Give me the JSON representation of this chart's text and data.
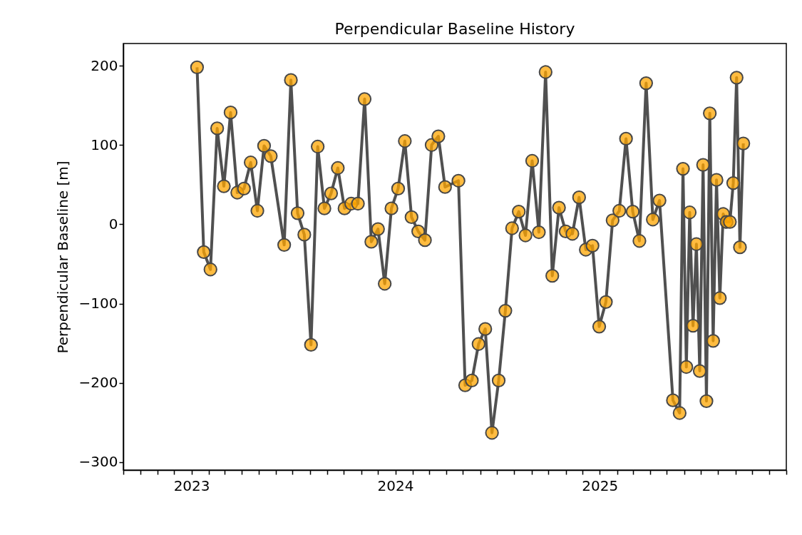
{
  "chart_data": {
    "type": "line",
    "title": "Perpendicular Baseline History",
    "ylabel": "Perpendicular Baseline [m]",
    "x": [
      "2023-01-11",
      "2023-01-23",
      "2023-02-04",
      "2023-02-16",
      "2023-02-28",
      "2023-03-12",
      "2023-03-24",
      "2023-04-05",
      "2023-04-17",
      "2023-04-29",
      "2023-05-11",
      "2023-05-23",
      "2023-06-16",
      "2023-06-28",
      "2023-07-10",
      "2023-07-22",
      "2023-08-03",
      "2023-08-15",
      "2023-08-27",
      "2023-09-08",
      "2023-09-20",
      "2023-10-02",
      "2023-10-14",
      "2023-10-26",
      "2023-11-07",
      "2023-11-19",
      "2023-12-01",
      "2023-12-13",
      "2023-12-25",
      "2024-01-06",
      "2024-01-18",
      "2024-01-30",
      "2024-02-11",
      "2024-02-23",
      "2024-03-06",
      "2024-03-18",
      "2024-03-30",
      "2024-04-23",
      "2024-05-05",
      "2024-05-17",
      "2024-05-29",
      "2024-06-10",
      "2024-06-22",
      "2024-07-04",
      "2024-07-16",
      "2024-07-28",
      "2024-08-09",
      "2024-08-21",
      "2024-09-02",
      "2024-09-14",
      "2024-09-26",
      "2024-10-08",
      "2024-10-20",
      "2024-11-01",
      "2024-11-13",
      "2024-11-25",
      "2024-12-07",
      "2024-12-19",
      "2024-12-31",
      "2025-01-12",
      "2025-01-24",
      "2025-02-05",
      "2025-02-17",
      "2025-03-01",
      "2025-03-13",
      "2025-03-25",
      "2025-04-06",
      "2025-04-18",
      "2025-05-12",
      "2025-05-24",
      "2025-05-30",
      "2025-06-05",
      "2025-06-11",
      "2025-06-17",
      "2025-06-23",
      "2025-06-29",
      "2025-07-05",
      "2025-07-11",
      "2025-07-17",
      "2025-07-23",
      "2025-07-29",
      "2025-08-04",
      "2025-08-10",
      "2025-08-16",
      "2025-08-22",
      "2025-08-28",
      "2025-09-03",
      "2025-09-09",
      "2025-09-15"
    ],
    "series": [
      {
        "color": "#474747",
        "values": [
          198,
          -35,
          -57,
          121,
          48,
          141,
          40,
          45,
          78,
          17,
          99,
          86,
          -26,
          182,
          14,
          -13,
          -152,
          98,
          20,
          39,
          71,
          20,
          26,
          26,
          158,
          -22,
          -6,
          -75,
          20,
          45,
          105,
          9,
          -9,
          -20,
          100,
          111,
          47,
          55,
          -203,
          -197,
          -151,
          -132,
          -263,
          -197,
          -109,
          -5,
          16,
          -14,
          80,
          -10,
          192,
          -65,
          21,
          -9,
          -12,
          34,
          -32,
          -27,
          -129,
          -98,
          5,
          17,
          108,
          16,
          -21,
          178,
          6,
          30,
          -222,
          -238,
          70,
          -180,
          15,
          -128,
          -25,
          -185,
          75,
          -223,
          140,
          -147,
          56,
          -93,
          13,
          3,
          3,
          52,
          185,
          -29,
          102
        ]
      }
    ],
    "xlim": [
      "2022-09-01",
      "2025-12-01"
    ],
    "xticks": [
      {
        "value": "2022-09-01",
        "label": null
      },
      {
        "value": "2022-10-01",
        "label": null
      },
      {
        "value": "2022-11-01",
        "label": null
      },
      {
        "value": "2022-12-01",
        "label": null
      },
      {
        "value": "2023-01-01",
        "label": "2023"
      },
      {
        "value": "2023-02-01",
        "label": null
      },
      {
        "value": "2023-03-01",
        "label": null
      },
      {
        "value": "2023-04-01",
        "label": null
      },
      {
        "value": "2023-05-01",
        "label": null
      },
      {
        "value": "2023-06-01",
        "label": null
      },
      {
        "value": "2023-07-01",
        "label": null
      },
      {
        "value": "2023-08-01",
        "label": null
      },
      {
        "value": "2023-09-01",
        "label": null
      },
      {
        "value": "2023-10-01",
        "label": null
      },
      {
        "value": "2023-11-01",
        "label": null
      },
      {
        "value": "2023-12-01",
        "label": null
      },
      {
        "value": "2024-01-01",
        "label": "2024"
      },
      {
        "value": "2024-02-01",
        "label": null
      },
      {
        "value": "2024-03-01",
        "label": null
      },
      {
        "value": "2024-04-01",
        "label": null
      },
      {
        "value": "2024-05-01",
        "label": null
      },
      {
        "value": "2024-06-01",
        "label": null
      },
      {
        "value": "2024-07-01",
        "label": null
      },
      {
        "value": "2024-08-01",
        "label": null
      },
      {
        "value": "2024-09-01",
        "label": null
      },
      {
        "value": "2024-10-01",
        "label": null
      },
      {
        "value": "2024-11-01",
        "label": null
      },
      {
        "value": "2024-12-01",
        "label": null
      },
      {
        "value": "2025-01-01",
        "label": "2025"
      },
      {
        "value": "2025-02-01",
        "label": null
      },
      {
        "value": "2025-03-01",
        "label": null
      },
      {
        "value": "2025-04-01",
        "label": null
      },
      {
        "value": "2025-05-01",
        "label": null
      },
      {
        "value": "2025-06-01",
        "label": null
      },
      {
        "value": "2025-07-01",
        "label": null
      },
      {
        "value": "2025-08-01",
        "label": null
      },
      {
        "value": "2025-09-01",
        "label": null
      },
      {
        "value": "2025-10-01",
        "label": null
      },
      {
        "value": "2025-11-01",
        "label": null
      },
      {
        "value": "2025-12-01",
        "label": null
      }
    ],
    "ylim": [
      -310,
      228
    ],
    "yticks": [
      -300,
      -200,
      -100,
      0,
      100,
      200
    ],
    "grid": false,
    "marker": "circle",
    "line_style": "solid"
  }
}
